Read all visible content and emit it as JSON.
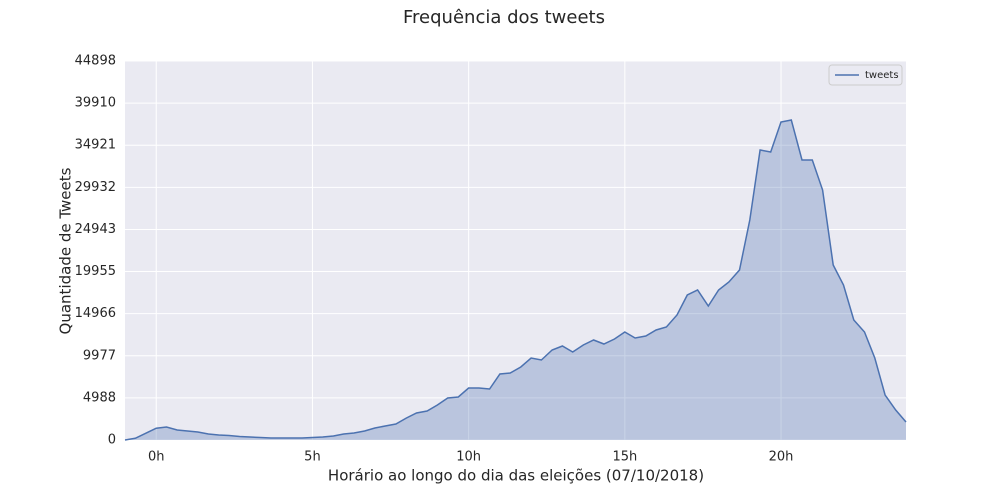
{
  "chart_data": {
    "type": "area",
    "title": "Frequência dos tweets",
    "xlabel": "Horário ao longo do dia das eleições (07/10/2018)",
    "ylabel": "Quantidade de Tweets",
    "x": [
      -1,
      -0.67,
      -0.33,
      0,
      0.33,
      0.67,
      1,
      1.33,
      1.67,
      2,
      2.33,
      2.67,
      3,
      3.33,
      3.67,
      4,
      4.33,
      4.67,
      5,
      5.33,
      5.67,
      6,
      6.33,
      6.67,
      7,
      7.33,
      7.67,
      8,
      8.33,
      8.67,
      9,
      9.33,
      9.67,
      10,
      10.33,
      10.67,
      11,
      11.33,
      11.67,
      12,
      12.33,
      12.67,
      13,
      13.33,
      13.67,
      14,
      14.33,
      14.67,
      15,
      15.33,
      15.67,
      16,
      16.33,
      16.67,
      17,
      17.33,
      17.67,
      18,
      18.33,
      18.67,
      19,
      19.33,
      19.67,
      20,
      20.33,
      20.67,
      21,
      21.33,
      21.67,
      22,
      22.33,
      22.67,
      23,
      23.33,
      23.67,
      24
    ],
    "series": [
      {
        "name": "tweets",
        "color": "#4c72b0",
        "values": [
          0,
          200,
          800,
          1400,
          1540,
          1180,
          1070,
          950,
          710,
          590,
          530,
          410,
          355,
          300,
          240,
          240,
          240,
          240,
          300,
          355,
          470,
          710,
          830,
          1070,
          1420,
          1660,
          1900,
          2600,
          3200,
          3440,
          4150,
          4980,
          5090,
          6160,
          6160,
          6040,
          7820,
          7940,
          8650,
          9710,
          9480,
          10660,
          11140,
          10420,
          11250,
          11850,
          11370,
          11960,
          12790,
          12080,
          12320,
          13030,
          13390,
          14810,
          17180,
          17770,
          15870,
          17770,
          18720,
          20140,
          26060,
          34350,
          34120,
          37670,
          37910,
          33170,
          33170,
          29620,
          20730,
          18360,
          14220,
          12790,
          9710,
          5330,
          3550,
          2130
        ]
      }
    ],
    "xlim": [
      -1,
      24
    ],
    "xticks": [
      {
        "value": 0,
        "label": "0h"
      },
      {
        "value": 5,
        "label": "5h"
      },
      {
        "value": 10,
        "label": "10h"
      },
      {
        "value": 15,
        "label": "15h"
      },
      {
        "value": 20,
        "label": "20h"
      }
    ],
    "ylim": [
      0,
      44898
    ],
    "yticks": [
      0,
      4988,
      9977,
      14966,
      19955,
      24943,
      29932,
      34921,
      39910,
      44898
    ],
    "grid": true,
    "legend": "upper right"
  }
}
